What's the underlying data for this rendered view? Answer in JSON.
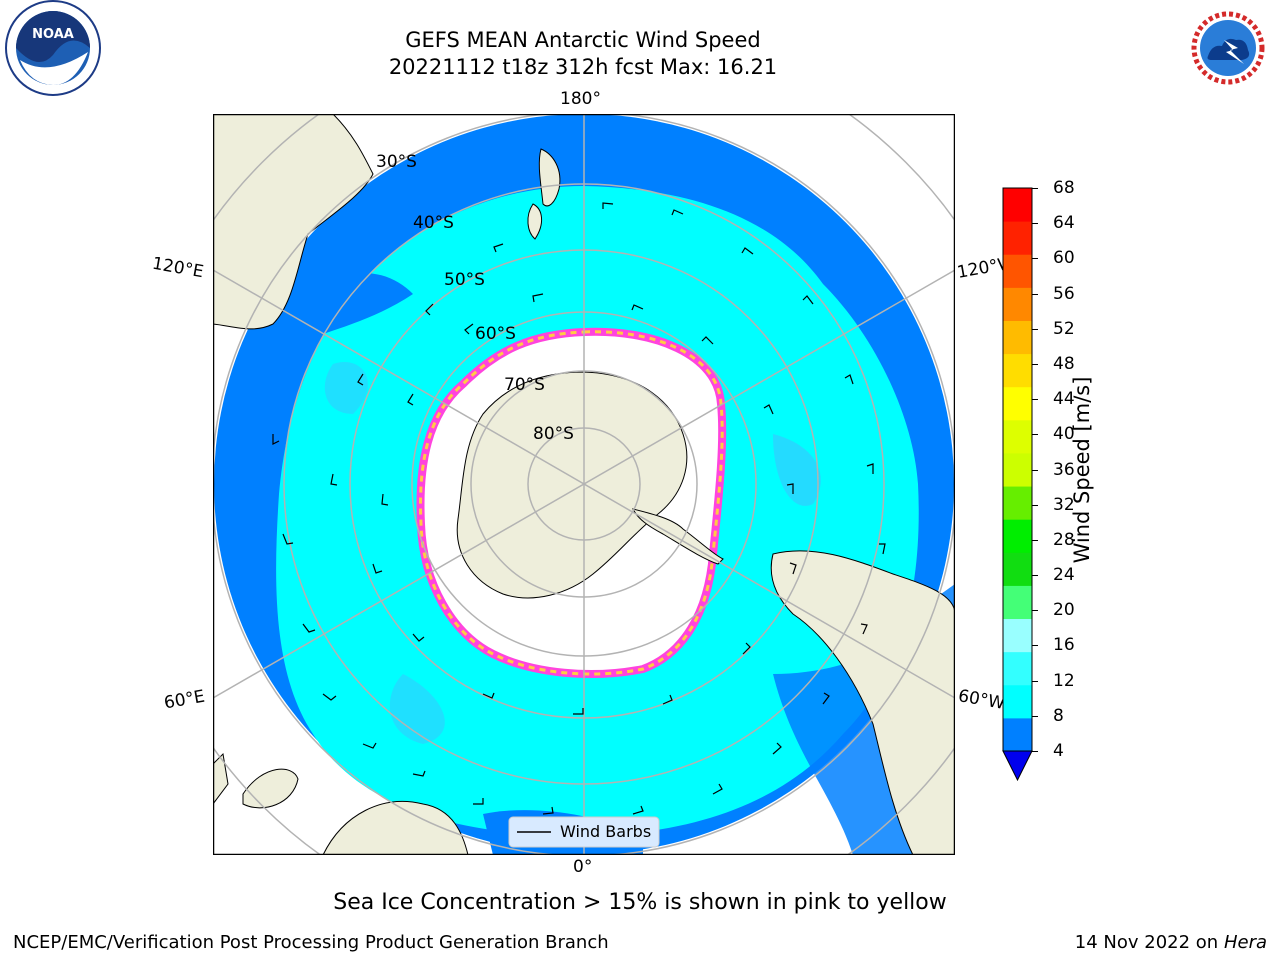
{
  "header": {
    "title_line1": "GEFS MEAN Antarctic Wind Speed",
    "title_line2": "20221112 t18z 312h fcst   Max: 16.21"
  },
  "logos": {
    "left": {
      "name": "NOAA",
      "ring_text": "NATIONAL OCEANIC AND ATMOSPHERIC ADMINISTRATION • U.S. DEPARTMENT OF COMMERCE"
    },
    "right": {
      "name": "NATIONAL WEATHER SERVICE"
    }
  },
  "map": {
    "projection": "south polar stereographic",
    "longitude_labels": {
      "top": "180°",
      "bottom": "0°",
      "upper_left": "120°E",
      "upper_right": "120°W",
      "lower_left": "60°E",
      "lower_right": "60°W"
    },
    "latitude_labels": [
      "30°S",
      "40°S",
      "50°S",
      "60°S",
      "70°S",
      "80°S"
    ],
    "legend_label": "Wind Barbs",
    "colors": {
      "ocean_low": "#0080ff",
      "ocean_mid": "#00ffff",
      "ocean_mid2": "#33ccff",
      "land": "#eeeedb",
      "ice": "#ffffff",
      "ice_edge_pink": "#ff44dd",
      "ice_edge_yellow": "#ffcc44",
      "grid": "#b3b3b3"
    }
  },
  "colorbar": {
    "label": "Wind Speed [m/s]",
    "ticks": [
      "68",
      "64",
      "60",
      "56",
      "52",
      "48",
      "44",
      "40",
      "36",
      "32",
      "28",
      "24",
      "20",
      "16",
      "12",
      "8",
      "4"
    ],
    "colors": [
      "#0000ee",
      "#0080ff",
      "#00ffff",
      "#33ffff",
      "#99ffff",
      "#44ff77",
      "#11dd11",
      "#00ee00",
      "#66ee00",
      "#ccff00",
      "#ddff00",
      "#ffff00",
      "#ffdd00",
      "#ffbb00",
      "#ff8800",
      "#ff5500",
      "#ff2200",
      "#ff0000"
    ]
  },
  "caption": "Sea Ice Concentration > 15% is shown in pink to yellow",
  "footer": {
    "left": "NCEP/EMC/Verification Post Processing Product Generation Branch",
    "right_date": "14 Nov 2022 on",
    "right_host": "Hera"
  }
}
